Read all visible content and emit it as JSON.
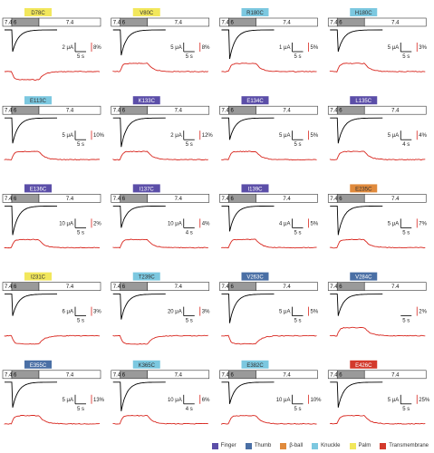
{
  "chart_data": {
    "type": "line",
    "grid": false,
    "solutions": [
      "7.4",
      "6",
      "7.4"
    ],
    "legend": [
      {
        "label": "Finger",
        "color": "#5b4ea8"
      },
      {
        "label": "Thumb",
        "color": "#4a6fa5"
      },
      {
        "label": "β-ball",
        "color": "#e08a3c"
      },
      {
        "label": "Knuckle",
        "color": "#7cc8e0"
      },
      {
        "label": "Palm",
        "color": "#f2e75c"
      },
      {
        "label": "Transmembrane",
        "color": "#d33a2c"
      }
    ],
    "trace_colors": {
      "current": "#000000",
      "fluorescence": "#d8261e"
    },
    "panels": [
      {
        "label": "D78C",
        "domain": "Palm",
        "current_scale": "2 μA",
        "fluor_scale": "8%",
        "time_scale": "5 s",
        "fluor_change": "decrease"
      },
      {
        "label": "V80C",
        "domain": "Palm",
        "current_scale": "5 μA",
        "fluor_scale": "8%",
        "time_scale": "5 s",
        "fluor_change": "increase"
      },
      {
        "label": "R180C",
        "domain": "Knuckle",
        "current_scale": "1 μA",
        "fluor_scale": "5%",
        "time_scale": "5 s",
        "fluor_change": "increase"
      },
      {
        "label": "H180C",
        "domain": "Knuckle",
        "current_scale": "5 μA",
        "fluor_scale": "3%",
        "time_scale": "5 s",
        "fluor_change": "increase"
      },
      {
        "label": "E113C",
        "domain": "Knuckle",
        "current_scale": "5 μA",
        "fluor_scale": "10%",
        "time_scale": "5 s",
        "fluor_change": "increase"
      },
      {
        "label": "K133C",
        "domain": "Finger",
        "current_scale": "2 μA",
        "fluor_scale": "12%",
        "time_scale": "5 s",
        "fluor_change": "increase"
      },
      {
        "label": "E134C",
        "domain": "Finger",
        "current_scale": "5 μA",
        "fluor_scale": "5%",
        "time_scale": "5 s",
        "fluor_change": "increase"
      },
      {
        "label": "L135C",
        "domain": "Finger",
        "current_scale": "5 μA",
        "fluor_scale": "4%",
        "time_scale": "4 s",
        "fluor_change": "increase"
      },
      {
        "label": "E136C",
        "domain": "Finger",
        "current_scale": "10 μA",
        "fluor_scale": "2%",
        "time_scale": "5 s",
        "fluor_change": "increase"
      },
      {
        "label": "I137C",
        "domain": "Finger",
        "current_scale": "10 μA",
        "fluor_scale": "4%",
        "time_scale": "4 s",
        "fluor_change": "increase"
      },
      {
        "label": "I139C",
        "domain": "Finger",
        "current_scale": "4 μA",
        "fluor_scale": "5%",
        "time_scale": "5 s",
        "fluor_change": "increase"
      },
      {
        "label": "E235C",
        "domain": "β-ball",
        "current_scale": "5 μA",
        "fluor_scale": "7%",
        "time_scale": "5 s",
        "fluor_change": "increase"
      },
      {
        "label": "I231C",
        "domain": "Palm",
        "current_scale": "6 μA",
        "fluor_scale": "3%",
        "time_scale": "5 s",
        "fluor_change": "decrease"
      },
      {
        "label": "T239C",
        "domain": "Knuckle",
        "current_scale": "20 μA",
        "fluor_scale": "3%",
        "time_scale": "5 s",
        "fluor_change": "decrease"
      },
      {
        "label": "V263C",
        "domain": "Thumb",
        "current_scale": "5 μA",
        "fluor_scale": "5%",
        "time_scale": "5 s",
        "fluor_change": "decrease"
      },
      {
        "label": "V284C",
        "domain": "Thumb",
        "current_scale": "",
        "fluor_scale": "2%",
        "time_scale": "5 s",
        "fluor_change": "increase"
      },
      {
        "label": "E355C",
        "domain": "Thumb",
        "current_scale": "5 μA",
        "fluor_scale": "13%",
        "time_scale": "5 s",
        "fluor_change": "increase"
      },
      {
        "label": "K365C",
        "domain": "Knuckle",
        "current_scale": "10 μA",
        "fluor_scale": "6%",
        "time_scale": "4 s",
        "fluor_change": "increase"
      },
      {
        "label": "E382C",
        "domain": "Knuckle",
        "current_scale": "10 μA",
        "fluor_scale": "10%",
        "time_scale": "5 s",
        "fluor_change": "increase"
      },
      {
        "label": "E426C",
        "domain": "Transmembrane",
        "current_scale": "5 μA",
        "fluor_scale": "25%",
        "time_scale": "5 s",
        "fluor_change": "increase"
      }
    ]
  }
}
